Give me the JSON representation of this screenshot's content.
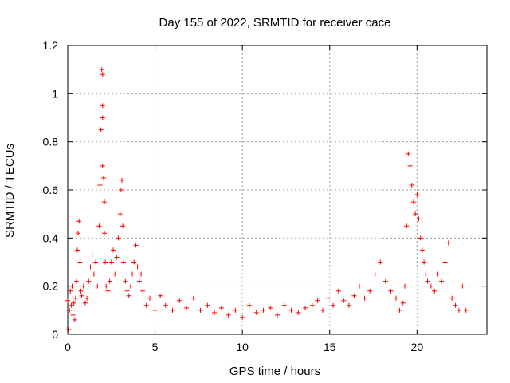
{
  "chart_data": {
    "type": "scatter",
    "title": "Day 155 of 2022, SRMTID for receiver cace",
    "xlabel": "GPS time / hours",
    "ylabel": "SRMTID / TECUs",
    "xlim": [
      0,
      24
    ],
    "ylim": [
      0,
      1.2
    ],
    "xticks": [
      0,
      5,
      10,
      15,
      20
    ],
    "xtick_labels": [
      "0",
      "5",
      "10",
      "15",
      "20"
    ],
    "yticks": [
      0,
      0.2,
      0.4,
      0.6,
      0.8,
      1.0,
      1.2
    ],
    "ytick_labels": [
      "0",
      "0.2",
      "0.4",
      "0.6",
      "0.8",
      "1",
      "1.2"
    ],
    "grid": true,
    "marker": "+",
    "color": "#ff0000",
    "series": [
      {
        "name": "SRMTID",
        "x": [
          0.0,
          0.05,
          0.1,
          0.15,
          0.2,
          0.25,
          0.3,
          0.35,
          0.4,
          0.45,
          0.5,
          0.55,
          0.6,
          0.65,
          0.7,
          0.75,
          0.8,
          0.9,
          1.0,
          1.1,
          1.2,
          1.3,
          1.4,
          1.5,
          1.6,
          1.7,
          1.8,
          1.85,
          1.9,
          1.95,
          2.0,
          2.0,
          2.0,
          2.0,
          2.05,
          2.1,
          2.1,
          2.15,
          2.2,
          2.3,
          2.4,
          2.5,
          2.6,
          2.7,
          2.8,
          2.9,
          3.0,
          3.05,
          3.1,
          3.15,
          3.2,
          3.3,
          3.4,
          3.5,
          3.6,
          3.7,
          3.8,
          3.9,
          4.0,
          4.1,
          4.2,
          4.3,
          4.5,
          4.7,
          5.0,
          5.3,
          5.6,
          6.0,
          6.4,
          6.8,
          7.2,
          7.6,
          8.0,
          8.4,
          8.8,
          9.2,
          9.6,
          10.0,
          10.4,
          10.8,
          11.2,
          11.6,
          12.0,
          12.4,
          12.8,
          13.2,
          13.6,
          14.0,
          14.3,
          14.6,
          14.9,
          15.2,
          15.5,
          15.8,
          16.1,
          16.4,
          16.7,
          17.0,
          17.3,
          17.6,
          17.9,
          18.2,
          18.5,
          18.8,
          19.0,
          19.2,
          19.3,
          19.4,
          19.5,
          19.6,
          19.7,
          19.8,
          19.9,
          20.0,
          20.1,
          20.2,
          20.3,
          20.4,
          20.5,
          20.6,
          20.8,
          21.0,
          21.2,
          21.4,
          21.6,
          21.8,
          22.0,
          22.2,
          22.4,
          22.6,
          22.8
        ],
        "y": [
          0.14,
          0.02,
          0.1,
          0.18,
          0.12,
          0.2,
          0.08,
          0.13,
          0.06,
          0.15,
          0.22,
          0.35,
          0.42,
          0.47,
          0.3,
          0.18,
          0.16,
          0.2,
          0.13,
          0.15,
          0.22,
          0.28,
          0.33,
          0.25,
          0.3,
          0.2,
          0.45,
          0.62,
          0.85,
          1.1,
          1.08,
          0.95,
          0.9,
          0.7,
          0.65,
          0.55,
          0.42,
          0.3,
          0.2,
          0.18,
          0.22,
          0.3,
          0.35,
          0.25,
          0.32,
          0.4,
          0.5,
          0.6,
          0.64,
          0.45,
          0.3,
          0.22,
          0.18,
          0.16,
          0.2,
          0.25,
          0.3,
          0.37,
          0.28,
          0.22,
          0.25,
          0.18,
          0.12,
          0.15,
          0.1,
          0.16,
          0.12,
          0.1,
          0.14,
          0.11,
          0.15,
          0.1,
          0.12,
          0.09,
          0.11,
          0.08,
          0.1,
          0.07,
          0.12,
          0.09,
          0.1,
          0.11,
          0.08,
          0.12,
          0.1,
          0.09,
          0.11,
          0.12,
          0.14,
          0.1,
          0.15,
          0.12,
          0.18,
          0.14,
          0.12,
          0.16,
          0.2,
          0.15,
          0.18,
          0.25,
          0.3,
          0.22,
          0.18,
          0.15,
          0.1,
          0.13,
          0.2,
          0.45,
          0.75,
          0.7,
          0.62,
          0.55,
          0.5,
          0.58,
          0.48,
          0.4,
          0.35,
          0.3,
          0.25,
          0.22,
          0.2,
          0.18,
          0.25,
          0.22,
          0.3,
          0.38,
          0.15,
          0.12,
          0.1,
          0.2,
          0.1
        ]
      }
    ]
  }
}
